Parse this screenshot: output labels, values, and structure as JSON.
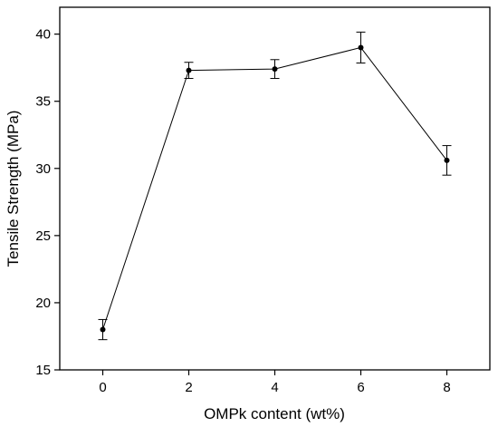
{
  "chart_data": {
    "type": "line",
    "title": "",
    "xlabel": "OMPk content (wt%)",
    "ylabel": "Tensile Strength (MPa)",
    "xlim": [
      -1,
      9
    ],
    "ylim": [
      15,
      42
    ],
    "xticks": [
      0,
      2,
      4,
      6,
      8
    ],
    "yticks": [
      15,
      20,
      25,
      30,
      35,
      40
    ],
    "grid": false,
    "legend": "none",
    "series": [
      {
        "x": [
          0,
          2,
          4,
          6,
          8
        ],
        "y": [
          18.0,
          37.3,
          37.4,
          39.0,
          30.6
        ],
        "error": [
          0.75,
          0.6,
          0.7,
          1.15,
          1.1
        ],
        "color": "#000000",
        "marker": "circle"
      }
    ]
  }
}
